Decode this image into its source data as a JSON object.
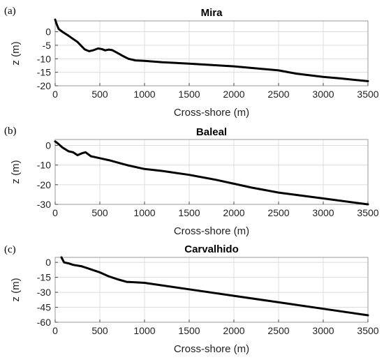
{
  "chart_data": [
    {
      "type": "line",
      "panel_label": "(a)",
      "title": "Mira",
      "xlabel": "Cross-shore (m)",
      "ylabel": "z (m)",
      "xlim": [
        0,
        3500
      ],
      "ylim": [
        -20,
        4
      ],
      "xticks": [
        0,
        500,
        1000,
        1500,
        2000,
        2500,
        3000,
        3500
      ],
      "yticks": [
        0,
        -5,
        -10,
        -15,
        -20
      ],
      "grid": true,
      "series": [
        {
          "color": "#000000",
          "x": [
            0,
            20,
            40,
            80,
            150,
            250,
            330,
            380,
            430,
            480,
            520,
            560,
            600,
            640,
            700,
            760,
            820,
            900,
            1000,
            1200,
            1500,
            2000,
            2500,
            2700,
            3000,
            3200,
            3500
          ],
          "y": [
            4.5,
            2.5,
            1.0,
            0,
            -1.5,
            -3.8,
            -6.5,
            -7.2,
            -6.8,
            -6.2,
            -6.4,
            -6.9,
            -6.6,
            -6.8,
            -7.9,
            -9.0,
            -10.0,
            -10.6,
            -10.8,
            -11.3,
            -11.8,
            -12.8,
            -14.3,
            -15.5,
            -16.7,
            -17.3,
            -18.3
          ]
        }
      ]
    },
    {
      "type": "line",
      "panel_label": "(b)",
      "title": "Baleal",
      "xlabel": "Cross-shore (m)",
      "ylabel": "z (m)",
      "xlim": [
        0,
        3500
      ],
      "ylim": [
        -30,
        3
      ],
      "xticks": [
        0,
        500,
        1000,
        1500,
        2000,
        2500,
        3000,
        3500
      ],
      "yticks": [
        0,
        -10,
        -20,
        -30
      ],
      "grid": true,
      "series": [
        {
          "color": "#000000",
          "x": [
            0,
            30,
            80,
            150,
            200,
            250,
            300,
            340,
            400,
            500,
            600,
            800,
            1000,
            1200,
            1500,
            1800,
            2000,
            2200,
            2500,
            3000,
            3500
          ],
          "y": [
            2.0,
            1.0,
            -1.0,
            -3.0,
            -3.5,
            -5.0,
            -4.0,
            -3.5,
            -5.5,
            -6.5,
            -7.5,
            -10.0,
            -12.0,
            -13.0,
            -15.0,
            -17.5,
            -19.5,
            -21.5,
            -24.0,
            -27.0,
            -30.0
          ]
        }
      ]
    },
    {
      "type": "line",
      "panel_label": "(c)",
      "title": "Carvalhido",
      "xlabel": "Cross-shore (m)",
      "ylabel": "z (m)",
      "xlim": [
        0,
        3500
      ],
      "ylim": [
        -60,
        5
      ],
      "xticks": [
        0,
        500,
        1000,
        1500,
        2000,
        2500,
        3000,
        3500
      ],
      "yticks": [
        0,
        -15,
        -30,
        -45,
        -60
      ],
      "grid": true,
      "series": [
        {
          "color": "#000000",
          "x": [
            70,
            100,
            150,
            200,
            300,
            400,
            500,
            600,
            700,
            800,
            900,
            1000,
            1500,
            2000,
            2500,
            3000,
            3500
          ],
          "y": [
            5.0,
            0,
            -1.0,
            -2.5,
            -4.0,
            -7.0,
            -10.0,
            -14.0,
            -17.0,
            -19.5,
            -20.0,
            -20.5,
            -27.0,
            -33.5,
            -40.0,
            -46.5,
            -53.0
          ]
        }
      ]
    }
  ]
}
